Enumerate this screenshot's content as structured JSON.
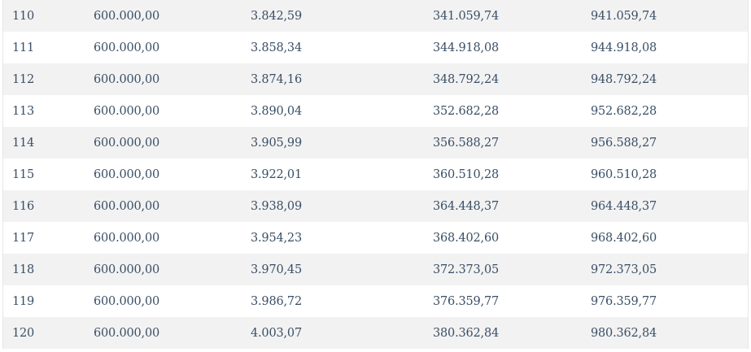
{
  "table": {
    "rows": [
      [
        "110",
        "600.000,00",
        "3.842,59",
        "341.059,74",
        "941.059,74"
      ],
      [
        "111",
        "600.000,00",
        "3.858,34",
        "344.918,08",
        "944.918,08"
      ],
      [
        "112",
        "600.000,00",
        "3.874,16",
        "348.792,24",
        "948.792,24"
      ],
      [
        "113",
        "600.000,00",
        "3.890,04",
        "352.682,28",
        "952.682,28"
      ],
      [
        "114",
        "600.000,00",
        "3.905,99",
        "356.588,27",
        "956.588,27"
      ],
      [
        "115",
        "600.000,00",
        "3.922,01",
        "360.510,28",
        "960.510,28"
      ],
      [
        "116",
        "600.000,00",
        "3.938,09",
        "364.448,37",
        "964.448,37"
      ],
      [
        "117",
        "600.000,00",
        "3.954,23",
        "368.402,60",
        "968.402,60"
      ],
      [
        "118",
        "600.000,00",
        "3.970,45",
        "372.373,05",
        "972.373,05"
      ],
      [
        "119",
        "600.000,00",
        "3.986,72",
        "376.359,77",
        "976.359,77"
      ],
      [
        "120",
        "600.000,00",
        "4.003,07",
        "380.362,84",
        "980.362,84"
      ]
    ]
  },
  "colors": {
    "text": "#3a4f66",
    "row_stripe": "#f2f2f2",
    "row_plain": "#ffffff"
  }
}
